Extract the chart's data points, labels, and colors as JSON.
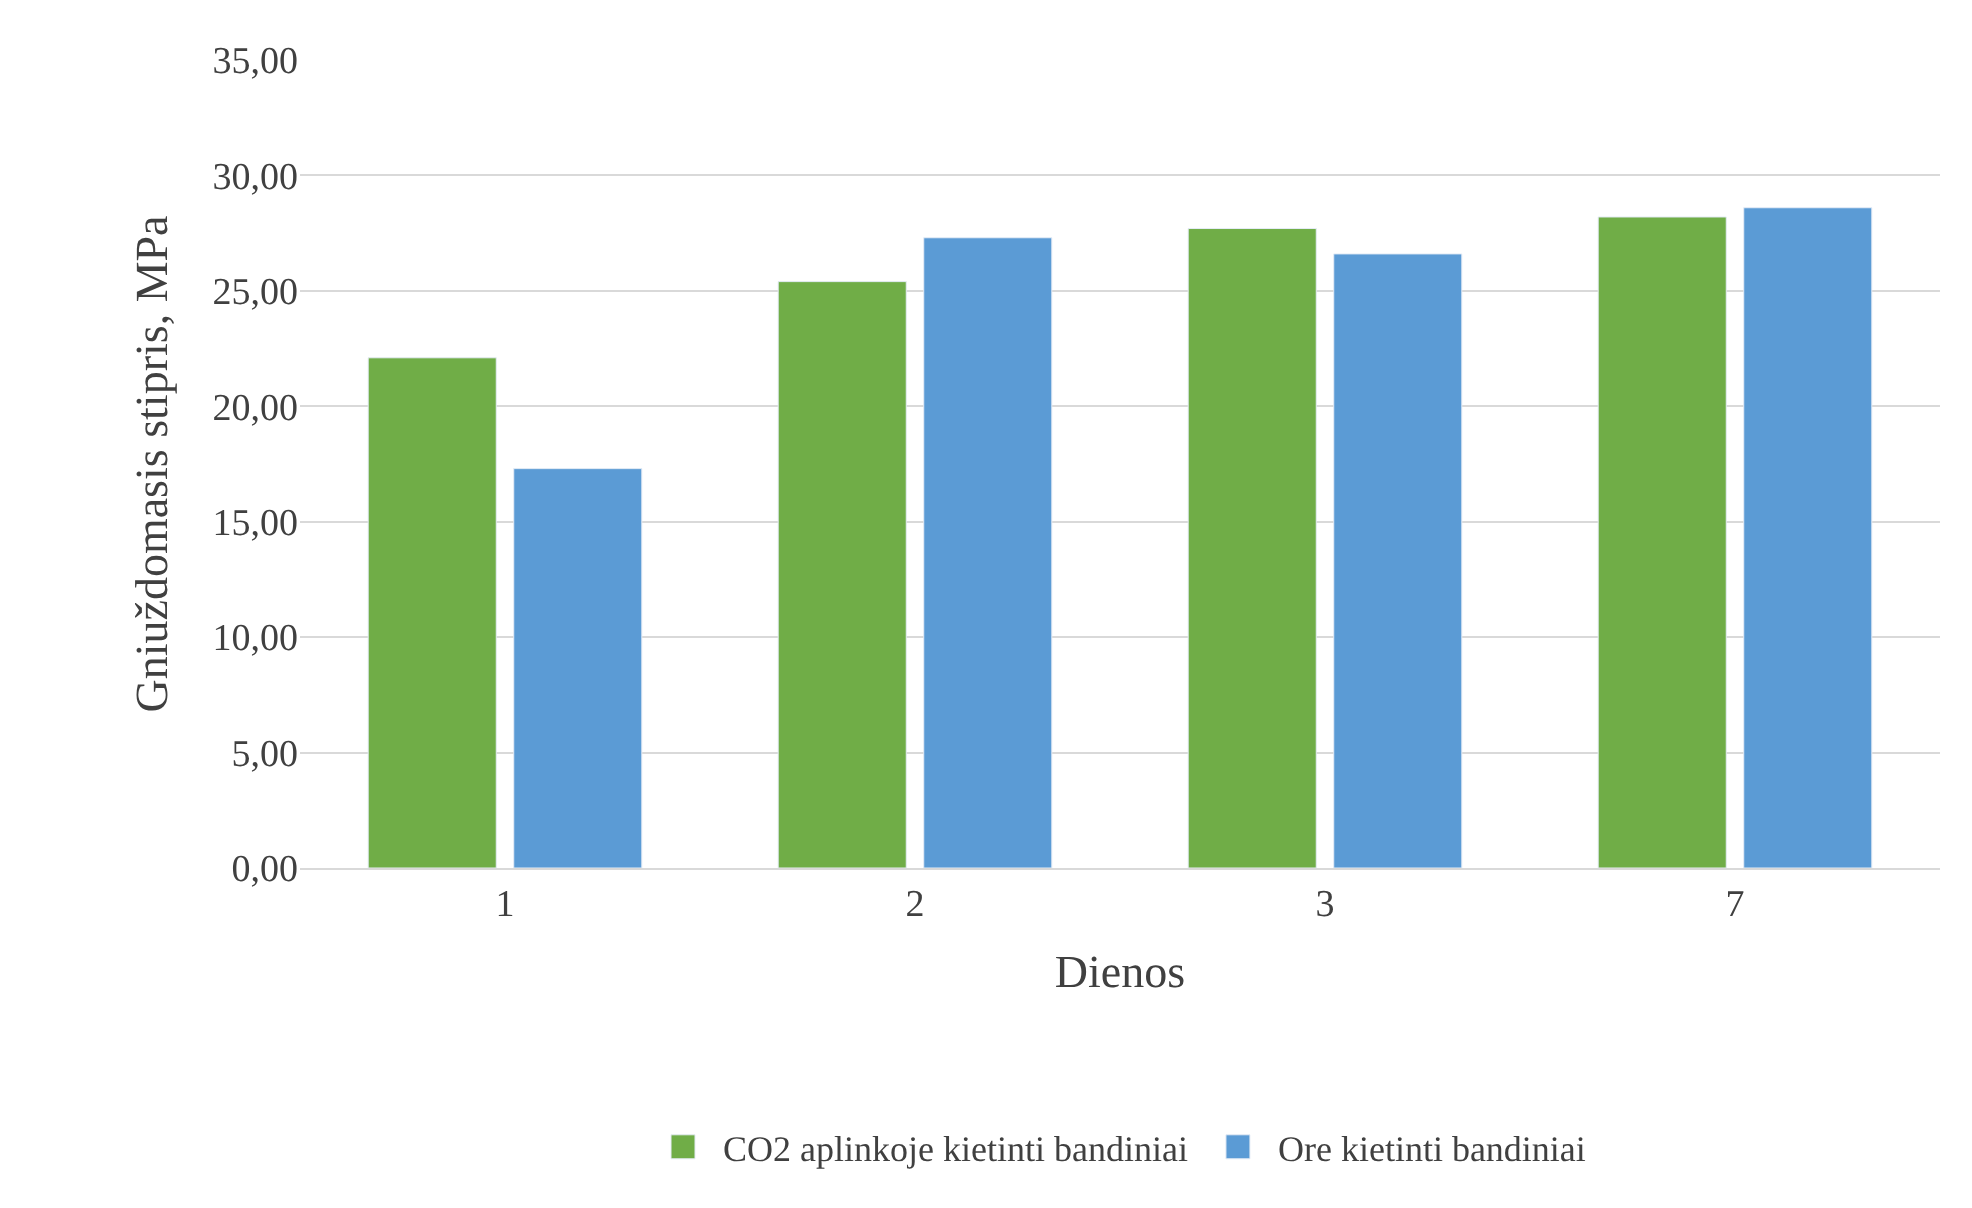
{
  "chart_data": {
    "type": "bar",
    "xlabel": "Dienos",
    "ylabel": "Gniuždomasis stipris, MPa",
    "categories": [
      "1",
      "2",
      "3",
      "7"
    ],
    "series": [
      {
        "name": "CO2 aplinkoje kietinti bandiniai",
        "color": "#70ad47",
        "values": [
          22.1,
          25.4,
          27.7,
          28.2
        ]
      },
      {
        "name": "Ore kietinti bandiniai",
        "color": "#5b9bd5",
        "values": [
          17.3,
          27.3,
          26.6,
          28.6
        ]
      }
    ],
    "ylim": [
      0,
      35
    ],
    "yticks": [
      {
        "value": 0,
        "label": "0,00"
      },
      {
        "value": 5,
        "label": "5,00"
      },
      {
        "value": 10,
        "label": "10,00"
      },
      {
        "value": 15,
        "label": "15,00"
      },
      {
        "value": 20,
        "label": "20,00"
      },
      {
        "value": 25,
        "label": "25,00"
      },
      {
        "value": 30,
        "label": "30,00"
      },
      {
        "value": 35,
        "label": "35,00"
      }
    ],
    "grid": "y",
    "legend": "bottom"
  }
}
